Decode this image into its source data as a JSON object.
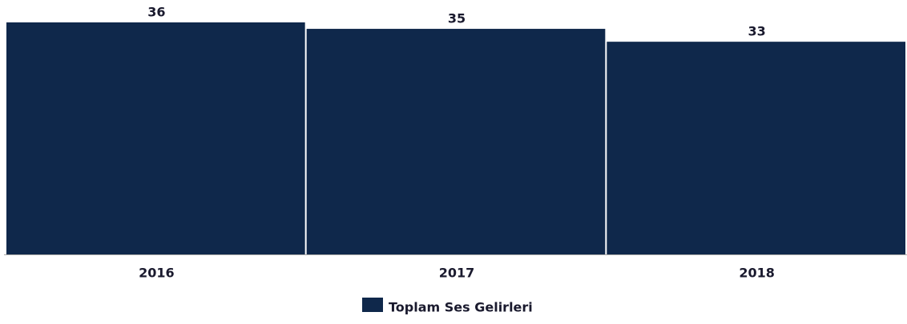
{
  "chart_data": {
    "type": "bar",
    "categories": [
      "2016",
      "2017",
      "2018"
    ],
    "series": [
      {
        "name": "Toplam Ses Gelirleri",
        "color": "#0f284b",
        "values": [
          36,
          35,
          33
        ]
      }
    ]
  }
}
